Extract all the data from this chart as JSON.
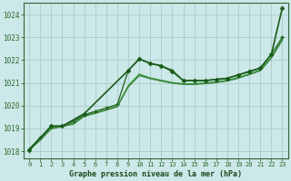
{
  "title": "Graphe pression niveau de la mer (hPa)",
  "bg_color": "#cce8e8",
  "grid_color": "#aacccc",
  "xlim": [
    -0.5,
    23.5
  ],
  "ylim": [
    1017.7,
    1024.5
  ],
  "yticks": [
    1018,
    1019,
    1020,
    1021,
    1022,
    1023,
    1024
  ],
  "xticks": [
    0,
    1,
    2,
    3,
    4,
    5,
    6,
    7,
    8,
    9,
    10,
    11,
    12,
    13,
    14,
    15,
    16,
    17,
    18,
    19,
    20,
    21,
    22,
    23
  ],
  "line_smooth": {
    "x": [
      0,
      1,
      2,
      3,
      4,
      5,
      6,
      7,
      8,
      9,
      10,
      11,
      12,
      13,
      14,
      15,
      16,
      17,
      18,
      19,
      20,
      21,
      22,
      23
    ],
    "y": [
      1018.05,
      1018.5,
      1019.0,
      1019.1,
      1019.2,
      1019.55,
      1019.68,
      1019.82,
      1019.97,
      1020.85,
      1021.35,
      1021.2,
      1021.1,
      1021.0,
      1020.95,
      1020.95,
      1020.98,
      1021.03,
      1021.1,
      1021.22,
      1021.38,
      1021.55,
      1022.1,
      1022.9
    ],
    "color": "#3a8a3a",
    "lw": 0.9
  },
  "line_smooth2": {
    "x": [
      0,
      1,
      2,
      3,
      4,
      5,
      6,
      7,
      8,
      9,
      10,
      11,
      12,
      13,
      14,
      15,
      16,
      17,
      18,
      19,
      20,
      21,
      22,
      23
    ],
    "y": [
      1018.05,
      1018.52,
      1019.02,
      1019.12,
      1019.22,
      1019.57,
      1019.7,
      1019.84,
      1019.99,
      1020.9,
      1021.4,
      1021.22,
      1021.12,
      1021.02,
      1020.97,
      1020.97,
      1021.0,
      1021.05,
      1021.12,
      1021.25,
      1021.4,
      1021.58,
      1022.12,
      1022.93
    ],
    "color": "#4db04d",
    "lw": 0.7
  },
  "line_smooth3": {
    "x": [
      0,
      1,
      2,
      3,
      4,
      5,
      6,
      7,
      8,
      9,
      10,
      11,
      12,
      13,
      14,
      15,
      16,
      17,
      18,
      19,
      20,
      21,
      22,
      23
    ],
    "y": [
      1018.05,
      1018.48,
      1018.98,
      1019.08,
      1019.18,
      1019.53,
      1019.66,
      1019.8,
      1019.95,
      1020.82,
      1021.32,
      1021.18,
      1021.08,
      1020.98,
      1020.93,
      1020.93,
      1020.96,
      1021.01,
      1021.08,
      1021.2,
      1021.36,
      1021.53,
      1022.08,
      1022.87
    ],
    "color": "#2d6a2d",
    "lw": 0.7
  },
  "line_marked1": {
    "x": [
      0,
      1,
      2,
      3,
      4,
      5,
      6,
      7,
      8,
      9,
      10,
      11,
      12,
      13,
      14,
      15,
      16,
      17,
      18,
      19,
      20,
      21,
      22,
      23
    ],
    "y": [
      1018.1,
      1018.6,
      1019.1,
      1019.1,
      1019.3,
      1019.6,
      1019.75,
      1019.9,
      1020.05,
      1021.55,
      1022.05,
      1021.85,
      1021.75,
      1021.55,
      1021.1,
      1021.1,
      1021.1,
      1021.15,
      1021.2,
      1021.35,
      1021.5,
      1021.65,
      1022.25,
      1023.0
    ],
    "color": "#2d6a2d",
    "lw": 1.0,
    "marker": "D",
    "ms": 2.0
  },
  "line_marked2": {
    "x": [
      0,
      2,
      3,
      5,
      9,
      10,
      11,
      12,
      13,
      14,
      15,
      16,
      17,
      18,
      19,
      20,
      21,
      22,
      23
    ],
    "y": [
      1018.05,
      1019.1,
      1019.1,
      1019.65,
      1021.55,
      1022.05,
      1021.85,
      1021.75,
      1021.5,
      1021.1,
      1021.1,
      1021.1,
      1021.15,
      1021.2,
      1021.35,
      1021.5,
      1021.65,
      1022.25,
      1024.3
    ],
    "color": "#1a5c1a",
    "lw": 1.2,
    "marker": "D",
    "ms": 2.5
  }
}
